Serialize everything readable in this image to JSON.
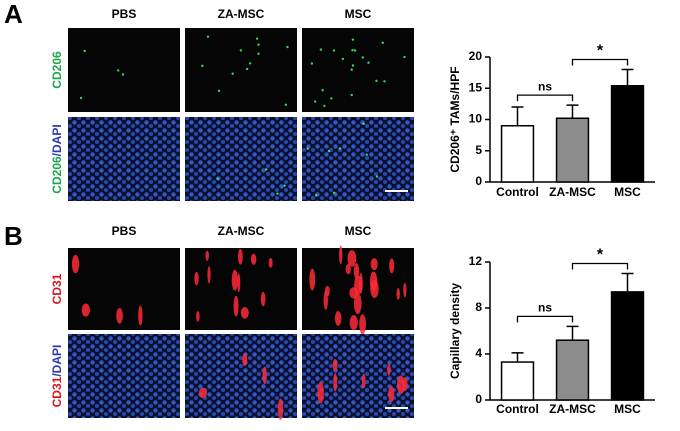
{
  "panels": [
    {
      "label": "A",
      "columns": [
        "PBS",
        "ZA-MSC",
        "MSC"
      ],
      "rows": [
        [
          "CD206"
        ],
        [
          "CD206",
          "/DAPI"
        ]
      ]
    },
    {
      "label": "B",
      "columns": [
        "PBS",
        "ZA-MSC",
        "MSC"
      ],
      "rows": [
        [
          "CD31"
        ],
        [
          "CD31",
          "/DAPI"
        ]
      ]
    }
  ],
  "chart_data": [
    {
      "type": "bar",
      "ylabel": "CD206⁺ TAMs/HPF",
      "categories": [
        "Control",
        "ZA-MSC",
        "MSC"
      ],
      "values": [
        9,
        10.2,
        15.4
      ],
      "errors": [
        3,
        2.1,
        2.6
      ],
      "colors": [
        "#ffffff",
        "#8c8c8c",
        "#000000"
      ],
      "ylim": [
        0,
        20
      ],
      "yticks": [
        0,
        5,
        10,
        15,
        20
      ],
      "annotations": [
        "ns",
        "*"
      ]
    },
    {
      "type": "bar",
      "ylabel": "Capillary density",
      "categories": [
        "Control",
        "ZA-MSC",
        "MSC"
      ],
      "values": [
        3.3,
        5.2,
        9.4
      ],
      "errors": [
        0.8,
        1.2,
        1.6
      ],
      "colors": [
        "#ffffff",
        "#8c8c8c",
        "#000000"
      ],
      "ylim": [
        0,
        12
      ],
      "yticks": [
        0,
        4,
        8,
        12
      ],
      "annotations": [
        "ns",
        "*"
      ]
    }
  ]
}
